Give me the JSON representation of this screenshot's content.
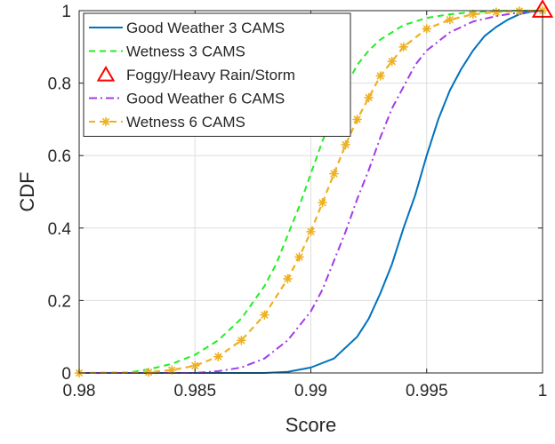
{
  "chart_data": {
    "type": "line",
    "title": "",
    "xlabel": "Score",
    "ylabel": "CDF",
    "xlim": [
      0.98,
      1.0
    ],
    "ylim": [
      0,
      1
    ],
    "grid": true,
    "legend_position": "top-left",
    "x_ticks": [
      0.98,
      0.985,
      0.99,
      0.995,
      1.0
    ],
    "x_tick_labels": [
      "0.98",
      "0.985",
      "0.99",
      "0.995",
      "1"
    ],
    "y_ticks": [
      0,
      0.2,
      0.4,
      0.6,
      0.8,
      1.0
    ],
    "y_tick_labels": [
      "0",
      "0.2",
      "0.4",
      "0.6",
      "0.8",
      "1"
    ],
    "series": [
      {
        "name": "Good Weather 3 CAMS",
        "color": "#0072BD",
        "line_style": "solid",
        "marker": "none",
        "x": [
          0.98,
          0.988,
          0.989,
          0.99,
          0.991,
          0.992,
          0.9925,
          0.993,
          0.9935,
          0.994,
          0.9945,
          0.995,
          0.9955,
          0.996,
          0.9965,
          0.997,
          0.9975,
          0.998,
          0.9985,
          0.999,
          0.9995,
          1.0
        ],
        "y": [
          0.0,
          0.0,
          0.003,
          0.015,
          0.04,
          0.1,
          0.15,
          0.22,
          0.3,
          0.4,
          0.49,
          0.6,
          0.7,
          0.78,
          0.84,
          0.89,
          0.93,
          0.955,
          0.975,
          0.99,
          0.997,
          1.0
        ]
      },
      {
        "name": "Wetness 3 CAMS",
        "color": "#22EE22",
        "line_style": "dashed",
        "marker": "none",
        "x": [
          0.98,
          0.982,
          0.983,
          0.984,
          0.985,
          0.986,
          0.987,
          0.988,
          0.9885,
          0.989,
          0.9895,
          0.99,
          0.9905,
          0.991,
          0.9915,
          0.992,
          0.9925,
          0.993,
          0.994,
          0.995,
          0.996,
          0.997,
          0.998,
          0.999,
          1.0
        ],
        "y": [
          0.0,
          0.0,
          0.01,
          0.025,
          0.05,
          0.09,
          0.15,
          0.24,
          0.3,
          0.38,
          0.46,
          0.55,
          0.64,
          0.72,
          0.79,
          0.85,
          0.89,
          0.92,
          0.96,
          0.98,
          0.99,
          0.996,
          0.999,
          1.0,
          1.0
        ]
      },
      {
        "name": "Foggy/Heavy Rain/Storm",
        "color": "#FF0000",
        "line_style": "none",
        "marker": "triangle",
        "x": [
          1.0
        ],
        "y": [
          1.0
        ]
      },
      {
        "name": "Good Weather 6 CAMS",
        "color": "#A23CE8",
        "line_style": "dashdot",
        "marker": "none",
        "x": [
          0.98,
          0.985,
          0.986,
          0.987,
          0.988,
          0.989,
          0.99,
          0.9905,
          0.991,
          0.9915,
          0.992,
          0.9925,
          0.993,
          0.9935,
          0.994,
          0.9945,
          0.995,
          0.996,
          0.997,
          0.998,
          0.999,
          1.0
        ],
        "y": [
          0.0,
          0.0,
          0.005,
          0.015,
          0.04,
          0.09,
          0.17,
          0.23,
          0.31,
          0.39,
          0.48,
          0.56,
          0.65,
          0.73,
          0.79,
          0.85,
          0.89,
          0.94,
          0.97,
          0.985,
          0.995,
          1.0
        ]
      },
      {
        "name": "Wetness 6 CAMS",
        "color": "#EDB120",
        "line_style": "dashed",
        "marker": "asterisk",
        "x": [
          0.98,
          0.983,
          0.984,
          0.985,
          0.986,
          0.987,
          0.988,
          0.989,
          0.9895,
          0.99,
          0.9905,
          0.991,
          0.9915,
          0.992,
          0.9925,
          0.993,
          0.9935,
          0.994,
          0.995,
          0.996,
          0.997,
          0.998,
          0.999,
          1.0
        ],
        "y": [
          0.0,
          0.002,
          0.008,
          0.02,
          0.045,
          0.09,
          0.16,
          0.26,
          0.32,
          0.39,
          0.47,
          0.55,
          0.63,
          0.7,
          0.76,
          0.82,
          0.86,
          0.9,
          0.95,
          0.975,
          0.99,
          0.996,
          0.999,
          1.0
        ]
      }
    ]
  }
}
